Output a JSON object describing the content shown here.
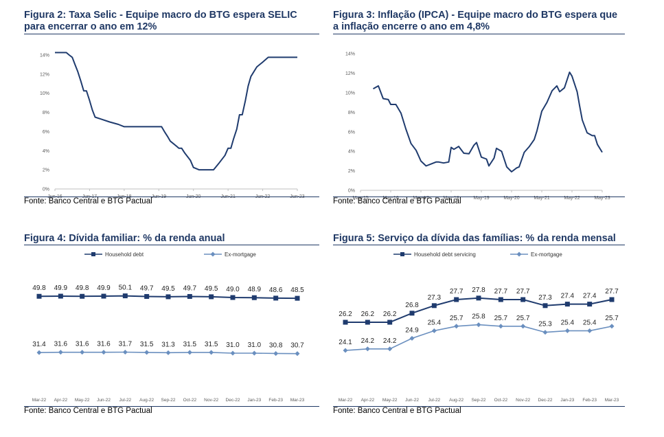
{
  "panels": [
    {
      "title_line1": "Figura 2: Taxa Selic - Equipe macro do BTG espera SELIC",
      "title_line2": "para encerrar o ano em 12%",
      "source": "Fonte: Banco Central e BTG Pactual"
    },
    {
      "title_line1": "Figura 3: Inflação (IPCA) - Equipe macro do BTG espera que",
      "title_line2": "a inflação encerre o ano em 4,8%",
      "source": "Fonte: Banco Central e BTG Pactual"
    },
    {
      "title_line1": "Figura 4: Dívida familiar: % da renda anual",
      "source": "Fonte: Banco Central e BTG Pactual"
    },
    {
      "title_line1": "Figura 5: Serviço da dívida das famílias: % da renda mensal",
      "source": "Fonte: Banco Central e BTG Pactual"
    }
  ],
  "colors": {
    "line": "#1f3b6e",
    "line_light": "#6a8fbf",
    "axis": "#bfbfbf",
    "title": "#1f3864",
    "tick": "#595959"
  },
  "chart_data": [
    {
      "type": "line",
      "title": "Figura 2: Taxa Selic - Equipe macro do BTG espera SELIC para encerrar o ano em 12%",
      "x_tick_labels": [
        "Jun-16",
        "Jun-17",
        "Jun-18",
        "Jun-19",
        "Jun-20",
        "Jun-21",
        "Jun-22",
        "Jun-23"
      ],
      "y_tick_labels": [
        "0%",
        "2%",
        "4%",
        "6%",
        "8%",
        "10%",
        "12%",
        "14%"
      ],
      "ylim": [
        0,
        14.5
      ],
      "xlim": [
        2016.42,
        2023.42
      ],
      "grid": false,
      "series": [
        {
          "values": [
            [
              2016.42,
              14.25
            ],
            [
              2016.75,
              14.25
            ],
            [
              2016.83,
              14.0
            ],
            [
              2016.92,
              13.75
            ],
            [
              2017.0,
              13.0
            ],
            [
              2017.08,
              12.25
            ],
            [
              2017.17,
              11.25
            ],
            [
              2017.25,
              10.25
            ],
            [
              2017.33,
              10.25
            ],
            [
              2017.42,
              9.25
            ],
            [
              2017.5,
              8.25
            ],
            [
              2017.58,
              7.5
            ],
            [
              2017.75,
              7.3
            ],
            [
              2018.0,
              7.0
            ],
            [
              2018.25,
              6.75
            ],
            [
              2018.42,
              6.5
            ],
            [
              2019.0,
              6.5
            ],
            [
              2019.5,
              6.5
            ],
            [
              2019.58,
              6.0
            ],
            [
              2019.67,
              5.5
            ],
            [
              2019.75,
              5.0
            ],
            [
              2019.92,
              4.5
            ],
            [
              2020.0,
              4.25
            ],
            [
              2020.08,
              4.25
            ],
            [
              2020.17,
              3.75
            ],
            [
              2020.33,
              3.0
            ],
            [
              2020.42,
              2.25
            ],
            [
              2020.58,
              2.0
            ],
            [
              2021.0,
              2.0
            ],
            [
              2021.17,
              2.75
            ],
            [
              2021.33,
              3.5
            ],
            [
              2021.42,
              4.25
            ],
            [
              2021.5,
              4.25
            ],
            [
              2021.58,
              5.25
            ],
            [
              2021.67,
              6.25
            ],
            [
              2021.75,
              7.75
            ],
            [
              2021.83,
              7.75
            ],
            [
              2021.92,
              9.25
            ],
            [
              2022.0,
              10.75
            ],
            [
              2022.08,
              11.75
            ],
            [
              2022.25,
              12.75
            ],
            [
              2022.42,
              13.25
            ],
            [
              2022.58,
              13.75
            ],
            [
              2023.42,
              13.75
            ]
          ]
        }
      ]
    },
    {
      "type": "line",
      "title": "Figura 3: Inflação (IPCA) - Equipe macro do BTG espera que a inflação encerre o ano em 4,8%",
      "x_tick_labels": [
        "May-15",
        "May-16",
        "May-17",
        "May-18",
        "May-19",
        "May-20",
        "May-21",
        "May-22",
        "May-23"
      ],
      "y_tick_labels": [
        "0%",
        "2%",
        "4%",
        "6%",
        "8%",
        "10%",
        "12%",
        "14%"
      ],
      "ylim": [
        0,
        14.5
      ],
      "xlim": [
        2015.33,
        2023.33
      ],
      "grid": false,
      "series": [
        {
          "values": [
            [
              2015.75,
              10.4
            ],
            [
              2015.92,
              10.7
            ],
            [
              2016.08,
              9.4
            ],
            [
              2016.25,
              9.3
            ],
            [
              2016.33,
              8.8
            ],
            [
              2016.5,
              8.8
            ],
            [
              2016.67,
              7.9
            ],
            [
              2016.83,
              6.3
            ],
            [
              2017.0,
              4.8
            ],
            [
              2017.17,
              4.1
            ],
            [
              2017.33,
              3.0
            ],
            [
              2017.5,
              2.5
            ],
            [
              2017.67,
              2.7
            ],
            [
              2017.83,
              2.9
            ],
            [
              2017.92,
              2.9
            ],
            [
              2018.08,
              2.8
            ],
            [
              2018.25,
              2.9
            ],
            [
              2018.33,
              4.4
            ],
            [
              2018.42,
              4.2
            ],
            [
              2018.58,
              4.5
            ],
            [
              2018.75,
              3.8
            ],
            [
              2018.92,
              3.75
            ],
            [
              2019.08,
              4.6
            ],
            [
              2019.17,
              4.9
            ],
            [
              2019.33,
              3.4
            ],
            [
              2019.5,
              3.2
            ],
            [
              2019.58,
              2.5
            ],
            [
              2019.75,
              3.3
            ],
            [
              2019.83,
              4.3
            ],
            [
              2020.0,
              4.0
            ],
            [
              2020.17,
              2.4
            ],
            [
              2020.33,
              1.9
            ],
            [
              2020.5,
              2.3
            ],
            [
              2020.58,
              2.4
            ],
            [
              2020.75,
              3.9
            ],
            [
              2020.92,
              4.5
            ],
            [
              2021.08,
              5.2
            ],
            [
              2021.17,
              6.1
            ],
            [
              2021.33,
              8.1
            ],
            [
              2021.5,
              9.0
            ],
            [
              2021.67,
              10.2
            ],
            [
              2021.83,
              10.7
            ],
            [
              2021.92,
              10.1
            ],
            [
              2022.08,
              10.5
            ],
            [
              2022.25,
              12.1
            ],
            [
              2022.33,
              11.7
            ],
            [
              2022.5,
              10.1
            ],
            [
              2022.58,
              8.7
            ],
            [
              2022.67,
              7.2
            ],
            [
              2022.83,
              5.9
            ],
            [
              2023.0,
              5.6
            ],
            [
              2023.08,
              5.6
            ],
            [
              2023.17,
              4.7
            ],
            [
              2023.33,
              3.9
            ]
          ]
        }
      ]
    },
    {
      "type": "line",
      "title": "Figura 4: Dívida familiar: % da renda anual",
      "categories": [
        "Mar-22",
        "Apr-22",
        "May-22",
        "Jun-22",
        "Jul-22",
        "Aug-22",
        "Sep-22",
        "Oct-22",
        "Nov-22",
        "Dec-22",
        "Jan-23",
        "Feb-23",
        "Mar-23"
      ],
      "ylim": [
        0,
        60
      ],
      "legend": "top",
      "grid": false,
      "series": [
        {
          "name": "Household debt",
          "values": [
            49.8,
            49.9,
            49.8,
            49.9,
            50.1,
            49.7,
            49.5,
            49.7,
            49.5,
            49.0,
            48.9,
            48.6,
            48.5
          ]
        },
        {
          "name": "Ex-mortgage",
          "values": [
            31.4,
            31.6,
            31.6,
            31.6,
            31.7,
            31.5,
            31.3,
            31.5,
            31.5,
            31.0,
            31.0,
            30.8,
            30.7
          ]
        }
      ]
    },
    {
      "type": "line",
      "title": "Figura 5: Serviço da dívida das famílias: % da renda mensal",
      "categories": [
        "Mar-22",
        "Apr-22",
        "May-22",
        "Jun-22",
        "Jul-22",
        "Aug-22",
        "Sep-22",
        "Oct-22",
        "Nov-22",
        "Dec-22",
        "Jan-23",
        "Feb-23",
        "Mar-23"
      ],
      "ylim": [
        22,
        29
      ],
      "legend": "top",
      "grid": false,
      "series": [
        {
          "name": "Household debt servicing",
          "values": [
            26.2,
            26.2,
            26.2,
            26.8,
            27.3,
            27.7,
            27.8,
            27.7,
            27.7,
            27.3,
            27.4,
            27.4,
            27.7
          ]
        },
        {
          "name": "Ex-mortgage",
          "values": [
            24.1,
            24.2,
            24.2,
            24.9,
            25.4,
            25.7,
            25.8,
            25.7,
            25.7,
            25.3,
            25.4,
            25.4,
            25.7
          ]
        }
      ]
    }
  ]
}
